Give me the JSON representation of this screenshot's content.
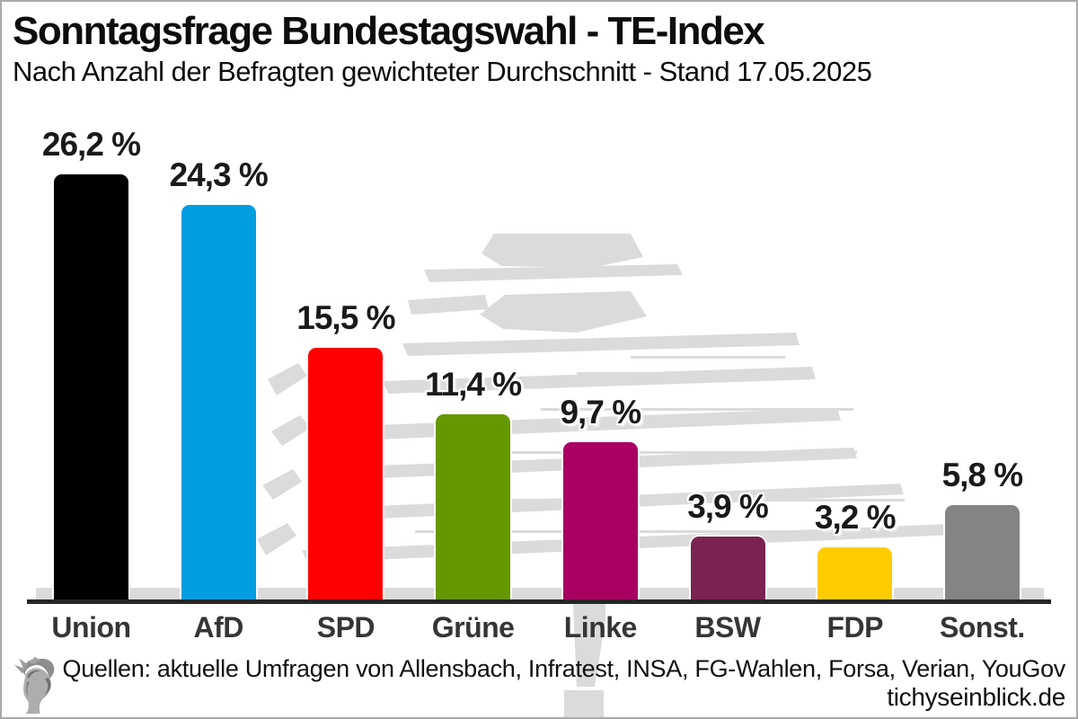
{
  "header": {
    "title": "Sonntagsfrage Bundestagswahl - TE-Index",
    "subtitle": "Nach Anzahl der Befragten gewichteter Durchschnitt - Stand 17.05.2025"
  },
  "chart_data": {
    "type": "bar",
    "categories": [
      "Union",
      "AfD",
      "SPD",
      "Grüne",
      "Linke",
      "BSW",
      "FDP",
      "Sonst."
    ],
    "values": [
      26.2,
      24.3,
      15.5,
      11.4,
      9.7,
      3.9,
      3.2,
      5.8
    ],
    "values_display": [
      "26,2 %",
      "24,3 %",
      "15,5 %",
      "11,4 %",
      "9,7 %",
      "3,9 %",
      "3,2 %",
      "5,8 %"
    ],
    "colors": [
      "#000000",
      "#009DE0",
      "#FF0000",
      "#659800",
      "#A80063",
      "#7A2350",
      "#FFCC00",
      "#848484"
    ],
    "title": "Sonntagsfrage Bundestagswahl - TE-Index",
    "xlabel": "",
    "ylabel": "",
    "ylim": [
      0,
      28
    ],
    "grid": false,
    "legend": "none",
    "value_label_format": "german decimal comma, suffix %",
    "background_watermark": "Reichstag dome sketch, light gray"
  },
  "footer": {
    "sources": "Quellen: aktuelle Umfragen von Allensbach, Infratest, INSA, FG-Wahlen, Forsa, Verian, YouGov",
    "site": "tichyseinblick.de",
    "logo": "hermes-head-logo"
  },
  "style_colors": {
    "axis": "#262626",
    "watermark": "#DBDBDB",
    "page_border": "#A9A9A9",
    "category_label": "#353535"
  }
}
